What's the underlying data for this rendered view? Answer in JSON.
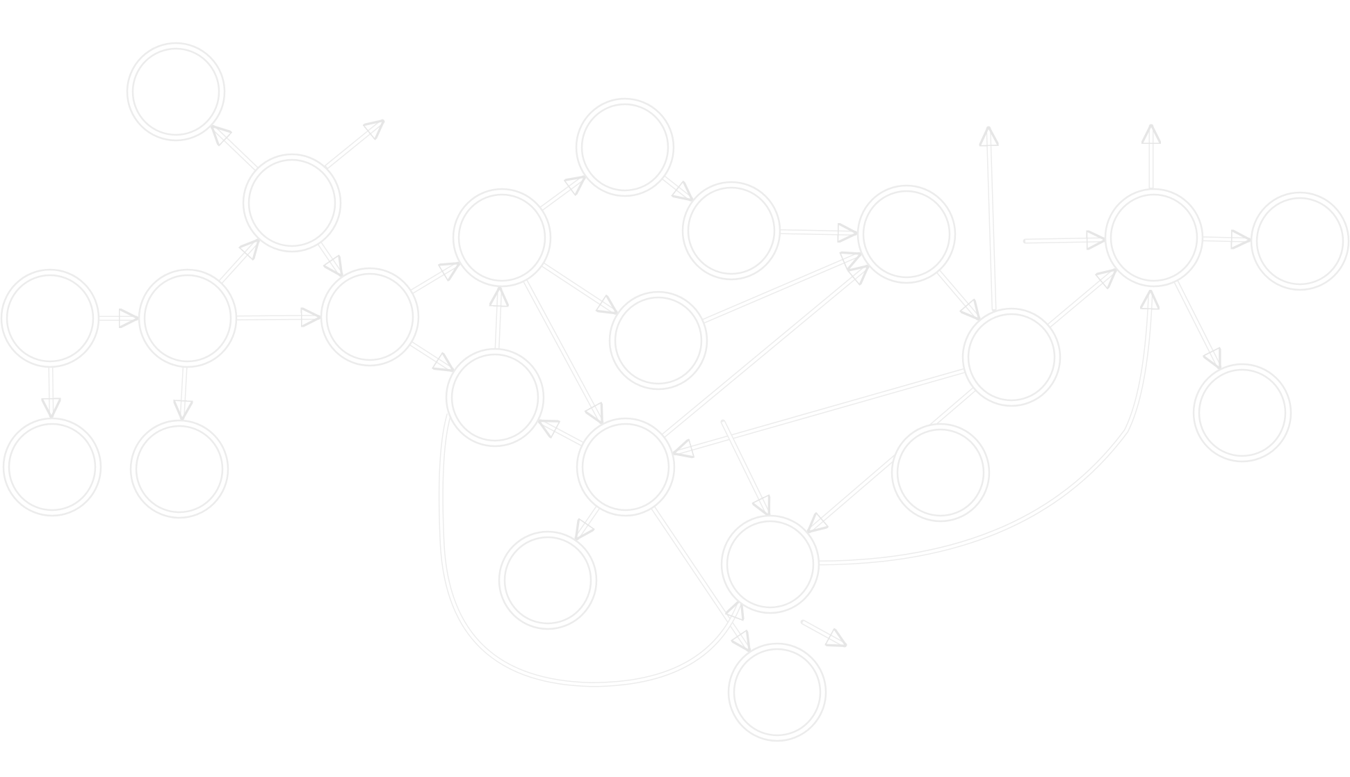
{
  "diagram": {
    "title": "",
    "stroke_color": "#ececec",
    "background": "#ffffff",
    "node_count": 25,
    "edge_count": 40
  }
}
